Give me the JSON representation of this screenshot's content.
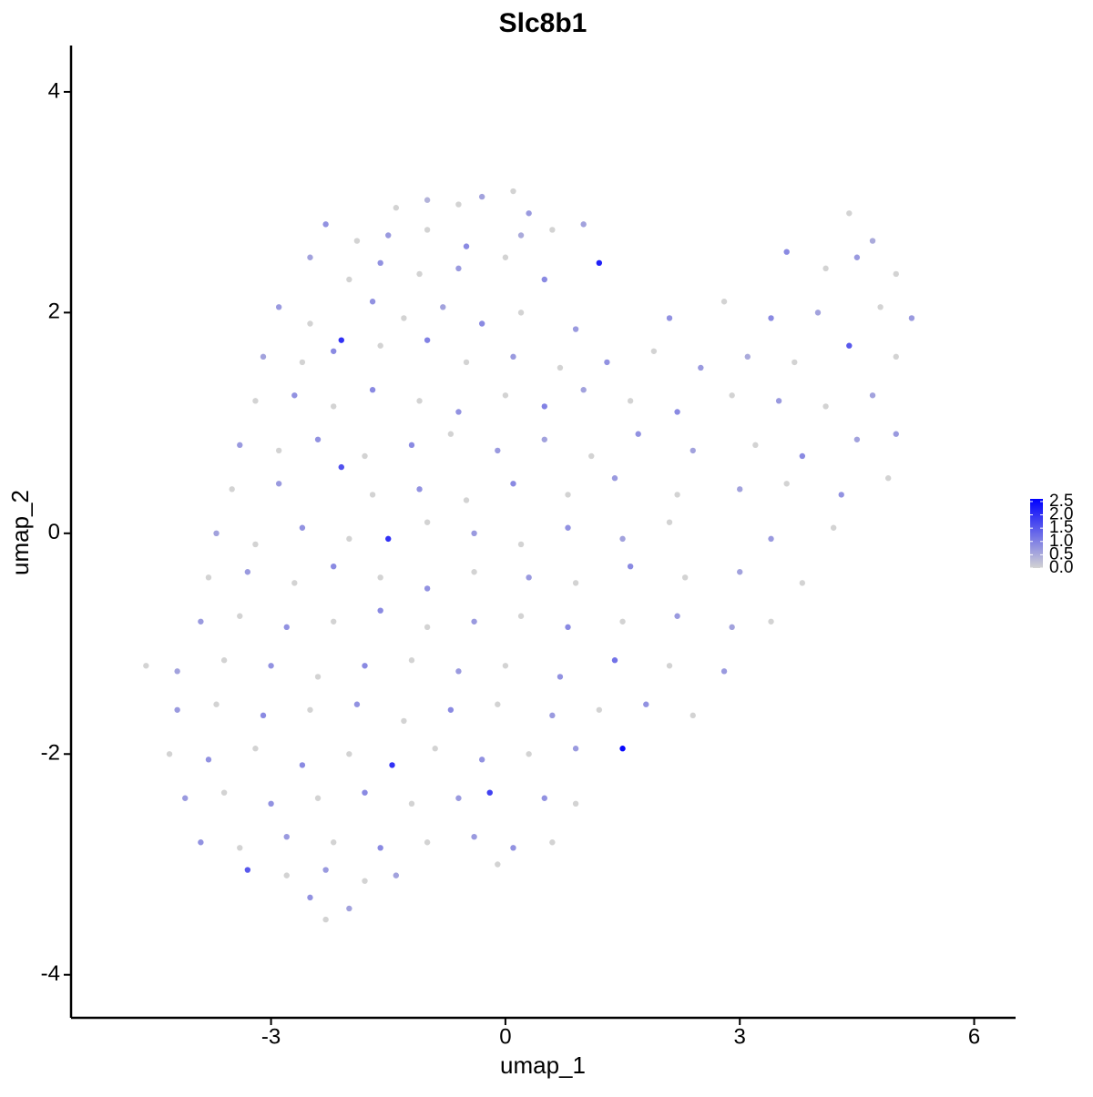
{
  "chart_data": {
    "type": "scatter",
    "title": "Slc8b1",
    "x_label": "umap_1",
    "y_label": "umap_2",
    "xlim": [
      -5.56,
      6.53
    ],
    "ylim": [
      -4.39,
      4.42
    ],
    "xticks": [
      -3,
      0,
      3,
      6
    ],
    "yticks": [
      -4,
      -2,
      0,
      2,
      4
    ],
    "low_color": "#d3d3d3",
    "high_color": "#0000ff",
    "clim": [
      0,
      2.6
    ],
    "colorbar_ticks": [
      {
        "value": 0,
        "label": "0.0"
      },
      0.5,
      {
        "value": 1,
        "label": "1.0"
      },
      1.5,
      {
        "value": 2,
        "label": "2.0"
      },
      2.5
    ],
    "x": [
      -1.4,
      -1.0,
      -0.6,
      -0.3,
      0.1,
      0.3,
      -2.3,
      -1.9,
      -1.5,
      -1.0,
      -0.5,
      0.2,
      0.6,
      1.0,
      4.4,
      4.7,
      -2.5,
      -2.0,
      -1.6,
      -1.1,
      -0.6,
      0,
      0.5,
      1.2,
      3.6,
      4.1,
      4.5,
      5.0,
      -2.9,
      -2.5,
      -2.1,
      -1.7,
      -1.3,
      -0.8,
      -0.3,
      0.2,
      0.9,
      2.1,
      2.8,
      3.4,
      4.0,
      4.8,
      5.2,
      -3.1,
      -2.6,
      -2.2,
      -1.6,
      -1.0,
      -0.5,
      0.1,
      0.7,
      1.3,
      1.9,
      2.5,
      3.1,
      3.7,
      4.4,
      5.0,
      -3.2,
      -2.7,
      -2.2,
      -1.7,
      -1.1,
      -0.6,
      0,
      0.5,
      1.0,
      1.6,
      2.2,
      2.9,
      3.5,
      4.1,
      4.7,
      -3.4,
      -2.9,
      -2.4,
      -1.8,
      -1.2,
      -0.7,
      -0.1,
      0.5,
      1.1,
      1.7,
      2.4,
      3.2,
      3.8,
      4.5,
      5.0,
      -3.5,
      -2.9,
      -2.1,
      -1.7,
      -1.1,
      -0.5,
      0.1,
      0.8,
      1.4,
      2.2,
      3.0,
      3.6,
      4.3,
      4.9,
      -3.7,
      -3.2,
      -2.6,
      -2.0,
      -1.5,
      -1.0,
      -0.4,
      0.2,
      0.8,
      1.5,
      2.1,
      3.4,
      4.2,
      -3.8,
      -3.3,
      -2.7,
      -2.2,
      -1.6,
      -1.0,
      -0.4,
      0.3,
      0.9,
      1.6,
      2.3,
      3.0,
      3.8,
      -3.9,
      -3.4,
      -2.8,
      -2.2,
      -1.6,
      -1.0,
      -0.4,
      0.2,
      0.8,
      1.5,
      2.2,
      2.9,
      3.4,
      -4.6,
      -4.2,
      -3.6,
      -3.0,
      -2.4,
      -1.8,
      -1.2,
      -0.6,
      0,
      0.7,
      1.4,
      2.1,
      2.8,
      -4.2,
      -3.7,
      -3.1,
      -2.5,
      -1.9,
      -1.3,
      -0.7,
      -0.1,
      0.6,
      1.2,
      1.8,
      2.4,
      -4.3,
      -3.8,
      -3.2,
      -2.6,
      -2.0,
      -1.45,
      -0.9,
      -0.3,
      0.3,
      0.9,
      1.5,
      -4.1,
      -3.6,
      -3.0,
      -2.4,
      -1.8,
      -1.2,
      -0.6,
      -0.2,
      0.5,
      0.9,
      -3.9,
      -3.4,
      -2.8,
      -2.2,
      -1.6,
      -1.0,
      -0.4,
      0.1,
      0.6,
      -3.3,
      -2.8,
      -2.3,
      -1.8,
      -1.4,
      -0.1,
      -2.5,
      -2.3,
      -2.0
    ],
    "y": [
      2.95,
      3.02,
      2.98,
      3.05,
      3.1,
      2.9,
      2.8,
      2.65,
      2.7,
      2.75,
      2.6,
      2.7,
      2.75,
      2.8,
      2.9,
      2.65,
      2.5,
      2.3,
      2.45,
      2.35,
      2.4,
      2.5,
      2.3,
      2.45,
      2.55,
      2.4,
      2.5,
      2.35,
      2.05,
      1.9,
      1.75,
      2.1,
      1.95,
      2.05,
      1.9,
      2.0,
      1.85,
      1.95,
      2.1,
      1.95,
      2.0,
      2.05,
      1.95,
      1.6,
      1.55,
      1.65,
      1.7,
      1.75,
      1.55,
      1.6,
      1.5,
      1.55,
      1.65,
      1.5,
      1.6,
      1.55,
      1.7,
      1.6,
      1.2,
      1.25,
      1.15,
      1.3,
      1.2,
      1.1,
      1.25,
      1.15,
      1.3,
      1.2,
      1.1,
      1.25,
      1.2,
      1.15,
      1.25,
      0.8,
      0.75,
      0.85,
      0.7,
      0.8,
      0.9,
      0.75,
      0.85,
      0.7,
      0.9,
      0.75,
      0.8,
      0.7,
      0.85,
      0.9,
      0.4,
      0.45,
      0.6,
      0.35,
      0.4,
      0.3,
      0.45,
      0.35,
      0.5,
      0.35,
      0.4,
      0.45,
      0.35,
      0.5,
      0.0,
      -0.1,
      0.05,
      -0.05,
      -0.05,
      0.1,
      0.0,
      -0.1,
      0.05,
      -0.05,
      0.1,
      -0.05,
      0.05,
      -0.4,
      -0.35,
      -0.45,
      -0.3,
      -0.4,
      -0.5,
      -0.35,
      -0.4,
      -0.45,
      -0.3,
      -0.4,
      -0.35,
      -0.45,
      -0.8,
      -0.75,
      -0.85,
      -0.8,
      -0.7,
      -0.85,
      -0.8,
      -0.75,
      -0.85,
      -0.8,
      -0.75,
      -0.85,
      -0.8,
      -1.2,
      -1.25,
      -1.15,
      -1.2,
      -1.3,
      -1.2,
      -1.15,
      -1.25,
      -1.2,
      -1.3,
      -1.15,
      -1.2,
      -1.25,
      -1.6,
      -1.55,
      -1.65,
      -1.6,
      -1.55,
      -1.7,
      -1.6,
      -1.55,
      -1.65,
      -1.6,
      -1.55,
      -1.65,
      -2.0,
      -2.05,
      -1.95,
      -2.1,
      -2.0,
      -2.1,
      -1.95,
      -2.05,
      -2.0,
      -1.95,
      -1.95,
      -2.4,
      -2.35,
      -2.45,
      -2.4,
      -2.35,
      -2.45,
      -2.4,
      -2.35,
      -2.4,
      -2.45,
      -2.8,
      -2.85,
      -2.75,
      -2.8,
      -2.85,
      -2.8,
      -2.75,
      -2.85,
      -2.8,
      -3.05,
      -3.1,
      -3.05,
      -3.15,
      -3.1,
      -3.0,
      -3.3,
      -3.5,
      -3.4
    ],
    "values": [
      0,
      0.4,
      0,
      0.6,
      0,
      0.7,
      0.8,
      0,
      0.7,
      0,
      0.9,
      0.5,
      0,
      0.6,
      0,
      0.5,
      0.6,
      0,
      0.8,
      0,
      0.7,
      0,
      0.9,
      2.2,
      0.9,
      0,
      0.7,
      0,
      0.7,
      0,
      2.0,
      0.8,
      0,
      0.6,
      0.9,
      0,
      0.7,
      0.8,
      0,
      0.9,
      0.6,
      0,
      0.7,
      0.6,
      0,
      0.9,
      0,
      1.0,
      0,
      0.7,
      0,
      0.8,
      0,
      0.7,
      0.5,
      0,
      1.5,
      0,
      0,
      0.8,
      0,
      0.9,
      0,
      0.8,
      0,
      1.0,
      0.6,
      0,
      0.9,
      0,
      0.7,
      0,
      0.6,
      0.7,
      0,
      0.8,
      0,
      0.9,
      0,
      0.7,
      0.6,
      0,
      0.8,
      0.6,
      0,
      0.9,
      0.6,
      0.7,
      0,
      0.7,
      1.6,
      0,
      0.8,
      0,
      0.9,
      0,
      0.7,
      0,
      0.6,
      0,
      0.8,
      0,
      0.6,
      0,
      0.8,
      0,
      2.0,
      0,
      0.7,
      0,
      0.8,
      0.6,
      0,
      0.7,
      0,
      0,
      0.7,
      0,
      0.9,
      0,
      0.8,
      0,
      0.7,
      0,
      0.9,
      0,
      0.6,
      0,
      0.7,
      0,
      0.8,
      0,
      0.9,
      0,
      0.7,
      0,
      0.9,
      0,
      0.7,
      0.6,
      0,
      0,
      0.6,
      0,
      0.8,
      0,
      0.9,
      0,
      0.7,
      0,
      0.8,
      1.2,
      0,
      0.7,
      0.7,
      0,
      0.9,
      0,
      0.8,
      0,
      0.9,
      0,
      0.7,
      0,
      0.8,
      0,
      0,
      0.8,
      0,
      0.9,
      0,
      2.0,
      0,
      0.8,
      0,
      0.7,
      2.5,
      0.7,
      0,
      0.8,
      0,
      0.9,
      0,
      0.7,
      1.8,
      0.8,
      0,
      0.8,
      0,
      0.7,
      0,
      0.9,
      0,
      0.7,
      0.8,
      0,
      1.5,
      0,
      0.7,
      0,
      0.6,
      0,
      0.8,
      0,
      0.6
    ]
  }
}
